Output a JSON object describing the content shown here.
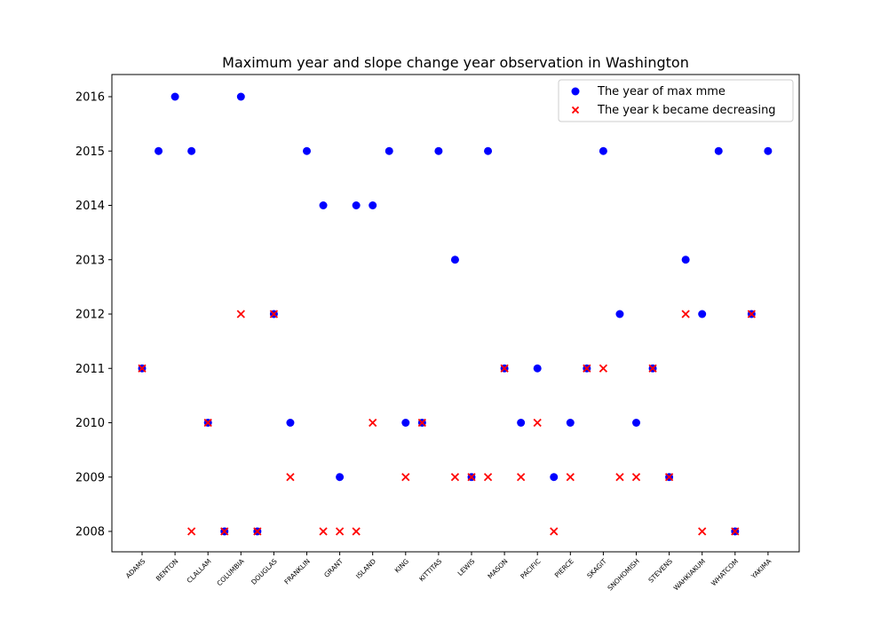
{
  "chart_data": {
    "type": "scatter",
    "title": "Maximum year and slope change year observation in Washington",
    "xlabel": "",
    "ylabel": "",
    "ylim": [
      2007.6,
      2016.4
    ],
    "yticks": [
      2008,
      2009,
      2010,
      2011,
      2012,
      2013,
      2014,
      2015,
      2016
    ],
    "xticks": [
      "ADAMS",
      "BENTON",
      "CLALLAM",
      "COLUMBIA",
      "DOUGLAS",
      "FRANKLIN",
      "GRANT",
      "ISLAND",
      "KING",
      "KITTITAS",
      "LEWIS",
      "MASON",
      "PACIFIC",
      "PIERCE",
      "SKAGIT",
      "SNOHOMISH",
      "STEVENS",
      "WAHKIAKUM",
      "WHATCOM",
      "YAKIMA"
    ],
    "legend_position": "top-right",
    "grid": false,
    "series": [
      {
        "name": "The year of max mme",
        "marker": "circle",
        "color": "#0000ff",
        "values": [
          2011,
          2015,
          2016,
          2015,
          2010,
          2008,
          2016,
          2008,
          2012,
          2010,
          2015,
          2014,
          2009,
          2014,
          2014,
          2015,
          2010,
          2010,
          2015,
          2013,
          2009,
          2015,
          2011,
          2010,
          2011,
          2009,
          2010,
          2011,
          2015,
          2012,
          2010,
          2011,
          2009,
          2013,
          2012,
          2015,
          2008,
          2012,
          2015
        ]
      },
      {
        "name": "The year k became decreasing",
        "marker": "x",
        "color": "#ff0000",
        "values": [
          2011,
          null,
          null,
          2008,
          2010,
          2008,
          2012,
          2008,
          2012,
          2009,
          null,
          2008,
          2008,
          2008,
          2010,
          null,
          2009,
          2010,
          null,
          2009,
          2009,
          2009,
          2011,
          2009,
          2010,
          2008,
          2009,
          2011,
          2011,
          2009,
          2009,
          2011,
          2009,
          2012,
          2008,
          null,
          2008,
          2012,
          null
        ]
      }
    ]
  }
}
